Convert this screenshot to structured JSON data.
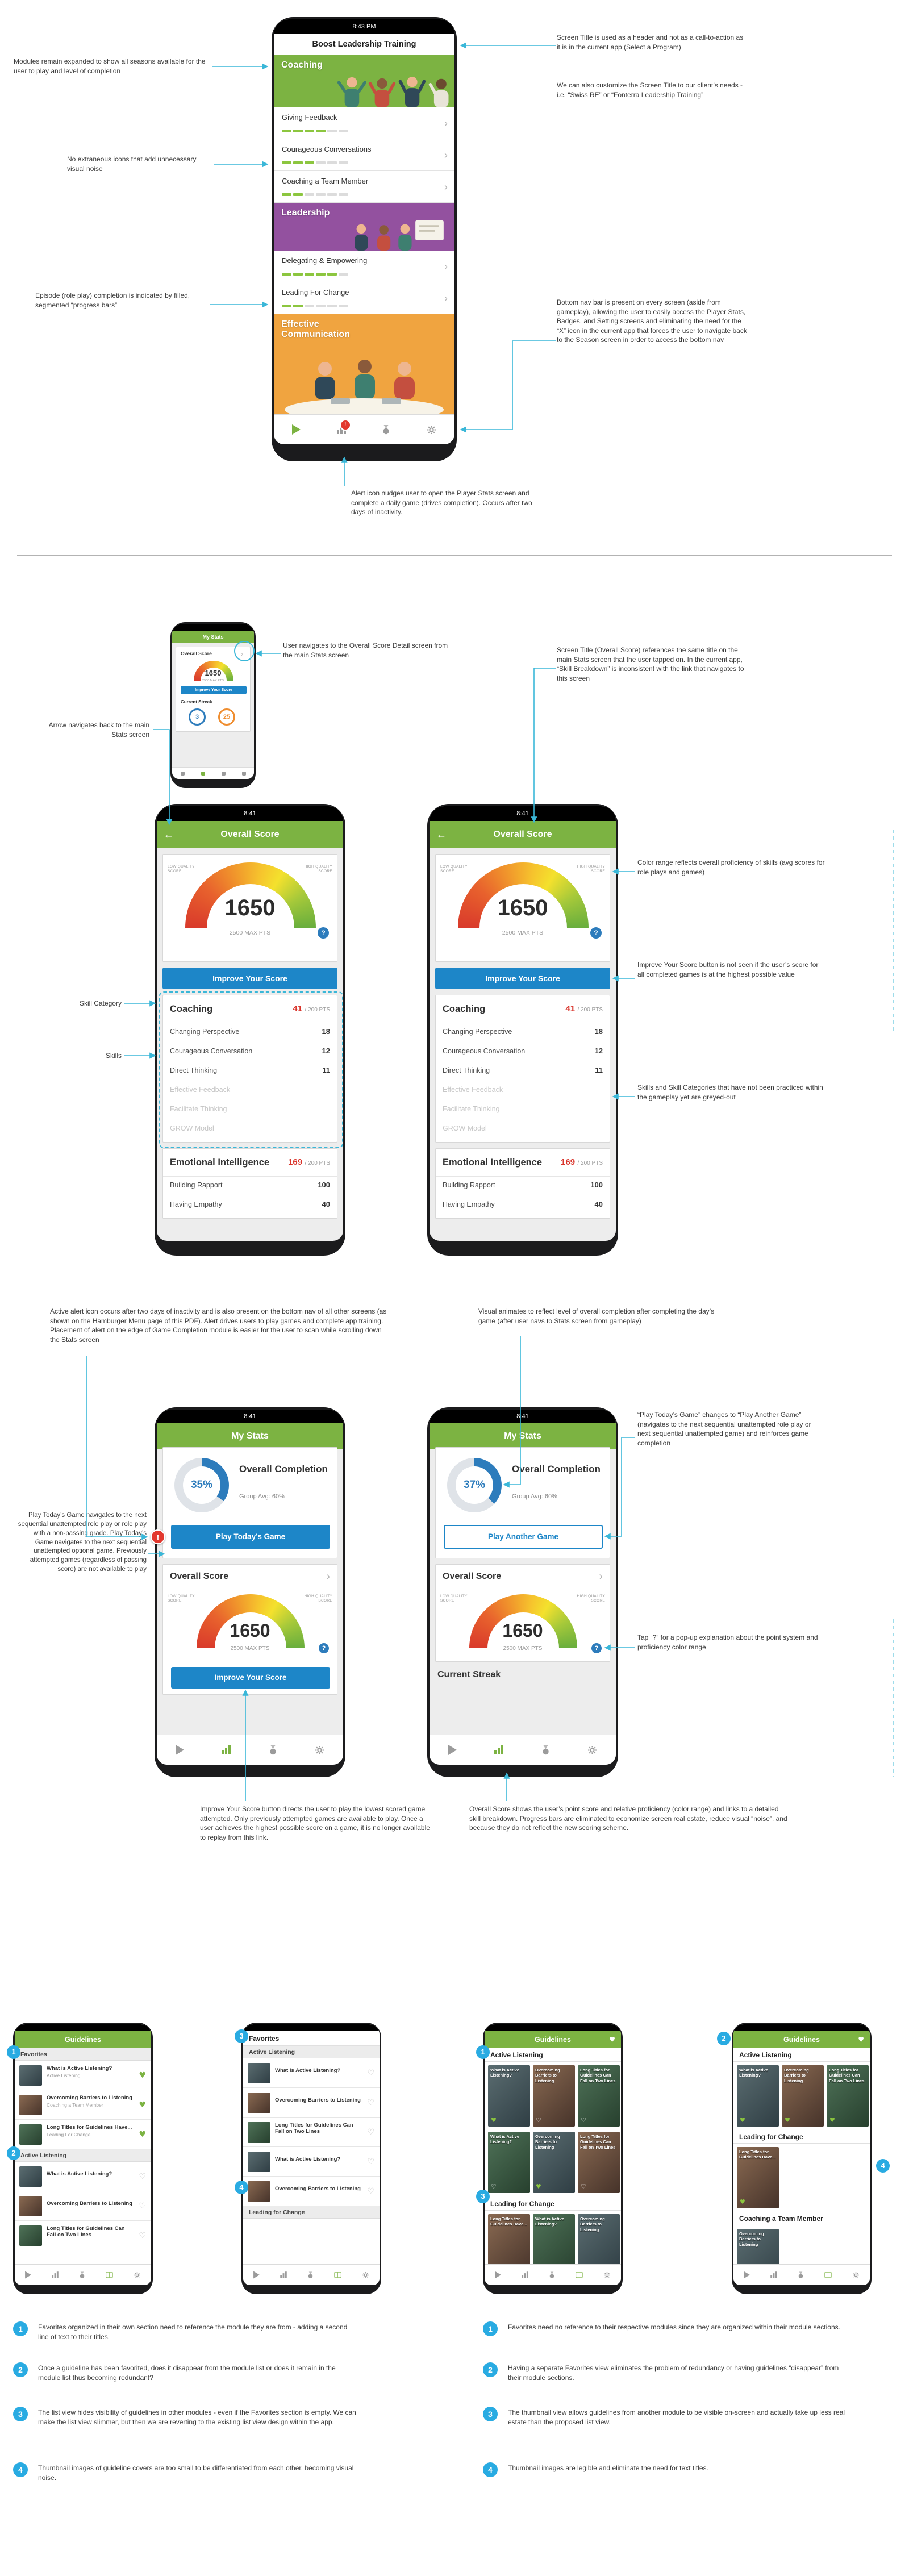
{
  "colors": {
    "app_green": "#7cb342",
    "leadership_purple": "#93519f",
    "communication_orange": "#f0a440",
    "button_blue": "#1d86c8",
    "alert_red": "#e2382e",
    "annotation_cyan": "#3ab7d8",
    "callout_blue": "#29abe2",
    "score_red": "#d9342b"
  },
  "board": {
    "s1": {
      "phone": {
        "time": "8:43 PM",
        "title": "Boost Leadership Training",
        "alert": "!",
        "modules": [
          {
            "kind": "banner",
            "label": "Coaching"
          },
          {
            "kind": "row",
            "label": "Giving Feedback",
            "filled": 4,
            "total": 6
          },
          {
            "kind": "row",
            "label": "Courageous Conversations",
            "filled": 3,
            "total": 6
          },
          {
            "kind": "row",
            "label": "Coaching a Team Member",
            "filled": 2,
            "total": 6
          },
          {
            "kind": "banner",
            "label": "Leadership"
          },
          {
            "kind": "row",
            "label": "Delegating & Empowering",
            "filled": 5,
            "total": 6
          },
          {
            "kind": "row",
            "label": "Leading For Change",
            "filled": 2,
            "total": 6
          },
          {
            "kind": "banner",
            "label": "Effective Communication"
          }
        ]
      },
      "ann": {
        "modules": "Modules remain expanded to show all seasons available for the user to play and level of completion",
        "icons": "No extraneous icons that add unnecessary visual noise",
        "episode": "Episode (role play) completion is indicated by filled, segmented “progress bars”",
        "screen_title": "Screen Title is used as a header and not as a call-to-action as it is in the current app (Select a Program)",
        "customize": "We can also customize the Screen Title to our client’s needs - i.e. “Swiss RE” or “Fonterra Leadership Training”",
        "bottom_nav": "Bottom nav bar is present on every screen (aside from gameplay), allowing the user to easily access the Player Stats, Badges, and Setting screens and eliminating the need for the “X” icon in the current app that forces the user to navigate back to the Season screen in order to access the bottom nav",
        "alert": "Alert icon nudges user to open the Player Stats screen and complete a daily game (drives completion). Occurs after two days of inactivity."
      }
    },
    "s2": {
      "mini": {
        "title": "My Stats",
        "card_title": "Overall Score",
        "score": "1650",
        "max": "2500 MAX PTS",
        "improve": "Improve Your Score",
        "streak": "Current Streak",
        "streak_a": "3",
        "streak_b": "25"
      },
      "screen": {
        "time": "8:41",
        "title": "Overall Score",
        "low": "LOW QUALITY SCORE",
        "high": "HIGH QUALITY SCORE",
        "score": "1650",
        "max": "2500 MAX PTS",
        "help": "?",
        "improve": "Improve Your Score",
        "cat1": {
          "name": "Coaching",
          "pts": "41",
          "ptsmax": "/ 200 PTS"
        },
        "cat1_skills": [
          {
            "name": "Changing Perspective",
            "value": "18",
            "grey": false
          },
          {
            "name": "Courageous Conversation",
            "value": "12",
            "grey": false
          },
          {
            "name": "Direct Thinking",
            "value": "11",
            "grey": false
          },
          {
            "name": "Effective Feedback",
            "value": "",
            "grey": true
          },
          {
            "name": "Facilitate Thinking",
            "value": "",
            "grey": true
          },
          {
            "name": "GROW Model",
            "value": "",
            "grey": true
          }
        ],
        "cat2": {
          "name": "Emotional Intelligence",
          "pts": "169",
          "ptsmax": "/ 200 PTS"
        },
        "cat2_skills": [
          {
            "name": "Building Rapport",
            "value": "100",
            "grey": false
          },
          {
            "name": "Having Empathy",
            "value": "40",
            "grey": false
          }
        ]
      },
      "ann": {
        "navigate": "User navigates to the Overall Score Detail screen from the main Stats screen",
        "back": "Arrow navigates back to the main Stats screen",
        "screen_title": "Screen Title (Overall Score) references the same title on the main Stats screen that the user tapped on. In the current app, “Skill Breakdown” is inconsistent with the link that navigates to this screen",
        "skill_category": "Skill Category",
        "skills": "Skills",
        "color_range": "Color range reflects overall proficiency of skills (avg scores for role plays and games)",
        "improve": "Improve Your Score button is not seen if the user’s score for all completed games is at the highest possible value",
        "greyed": "Skills and Skill Categories that have not been practiced within the gameplay yet are greyed-out"
      }
    },
    "s3": {
      "a": {
        "time": "8:41",
        "title": "My Stats",
        "pct": 35,
        "pct_label": "35%",
        "completion": "Overall Completion",
        "avg": "Group Avg: 60%",
        "play": "Play Today’s Game",
        "card_title": "Overall Score",
        "score": "1650",
        "max": "2500 MAX PTS",
        "help": "?",
        "improve": "Improve Your Score",
        "alert": "!",
        "low": "LOW QUALITY SCORE",
        "high": "HIGH QUALITY SCORE"
      },
      "b": {
        "time": "8:41",
        "title": "My Stats",
        "pct": 37,
        "pct_label": "37%",
        "completion": "Overall Completion",
        "avg": "Group Avg: 60%",
        "play": "Play Another Game",
        "card_title": "Overall Score",
        "score": "1650",
        "max": "2500 MAX PTS",
        "help": "?",
        "streak": "Current Streak",
        "low": "LOW QUALITY SCORE",
        "high": "HIGH QUALITY SCORE"
      },
      "ann": {
        "alert": "Active alert icon occurs after two days of inactivity and is also present on the bottom nav of all other screens (as shown on the Hamburger Menu page of this PDF). Alert drives users to play games and complete app training. Placement of alert on the edge of Game Completion module is easier for the user to scan while scrolling down the Stats screen",
        "animate": "Visual animates to reflect level of overall completion after completing the day’s game (after user navs to Stats screen from gameplay)",
        "play_nav": "Play Today’s Game navigates to the next sequential unattempted role play or role play with a non-passing grade. Play Today’s Game navigates to the next sequential unattempted optional game. Previously attempted games (regardless of passing score) are not available to play",
        "another": "“Play Today’s Game” changes to “Play Another Game” (navigates to the next sequential unattempted role play or next sequential unattempted game) and reinforces game completion",
        "tap": "Tap “?” for a pop-up explanation about the point system and proficiency color range",
        "improve": "Improve Your Score button directs the user to play the lowest scored game attempted. Only previously attempted games are available to play. Once a user achieves the highest possible score on a game, it is no longer available to replay from this link.",
        "score": "Overall Score shows the user’s point score and relative proficiency (color range) and links to a detailed skill breakdown. Progress bars are eliminated to economize screen real estate, reduce visual “noise”, and because they do not reflect the new scoring scheme."
      }
    },
    "s4": {
      "title": "Guidelines",
      "p1": {
        "sec1": "Favorites",
        "fav_items": [
          {
            "title": "What is Active Listening?",
            "sub": "Active Listening",
            "fav": true
          },
          {
            "title": "Overcoming Barriers to Listening",
            "sub": "Coaching a Team Member",
            "fav": true
          },
          {
            "title": "Long Titles for Guidelines Have...",
            "sub": "Leading For Change",
            "fav": true
          }
        ],
        "sec2": "Active Listening",
        "items": [
          {
            "title": "What is Active Listening?",
            "fav": false
          },
          {
            "title": "Overcoming Barriers to Listening",
            "fav": false
          },
          {
            "title": "Long Titles for Guidelines Can Fall on Two Lines",
            "fav": false
          }
        ]
      },
      "p2": {
        "sec1": "Favorites",
        "sec2": "Active Listening",
        "items": [
          {
            "title": "What is Active Listening?",
            "fav": false
          },
          {
            "title": "Overcoming Barriers to Listening",
            "fav": false
          },
          {
            "title": "Long Titles for Guidelines Can Fall on Two Lines",
            "fav": false
          },
          {
            "title": "What is Active Listening?",
            "fav": false
          },
          {
            "title": "Overcoming Barriers to Listening",
            "fav": false
          }
        ],
        "sec3": "Leading for Change"
      },
      "p3": {
        "sec1": "Active Listening",
        "row1": [
          {
            "title": "What is Active Listening?",
            "fav": true
          },
          {
            "title": "Overcoming Barriers to Listening",
            "fav": false
          },
          {
            "title": "Long Titles for Guidelines Can Fall on Two Lines",
            "fav": false
          }
        ],
        "row2": [
          {
            "title": "What is Active Listening?",
            "fav": false
          },
          {
            "title": "Overcoming Barriers to Listening",
            "fav": true
          },
          {
            "title": "Long Titles for Guidelines Can Fall on Two Lines",
            "fav": false
          }
        ],
        "sec2": "Leading for Change",
        "row3": [
          {
            "title": "Long Titles for Guidelines Have...",
            "fav": true
          },
          {
            "title": "What is Active Listening?",
            "fav": false
          },
          {
            "title": "Overcoming Barriers to Listening",
            "fav": false
          }
        ]
      },
      "p4": {
        "sec1": "Active Listening",
        "row1": [
          {
            "title": "What is Active Listening?",
            "fav": true
          },
          {
            "title": "Overcoming Barriers to Listening",
            "fav": true
          },
          {
            "title": "Long Titles for Guidelines Can Fall on Two Lines",
            "fav": true
          }
        ],
        "sec2": "Leading for Change",
        "row2": [
          {
            "title": "Long Titles for Guidelines Have...",
            "fav": true
          }
        ],
        "sec3": "Coaching a Team Member",
        "row3": [
          {
            "title": "Overcoming Barriers to Listening",
            "fav": true
          }
        ]
      },
      "callouts": {
        "c1": "1",
        "c2": "2",
        "c3": "3",
        "c4": "4"
      },
      "notes_left": [
        {
          "n": "1",
          "text": "Favorites organized in their own section need to reference the module they are from - adding a second line of text to their titles."
        },
        {
          "n": "2",
          "text": "Once a guideline has been favorited, does it disappear from the module list or does it remain in the module list thus becoming redundant?"
        },
        {
          "n": "3",
          "text": "The list view hides visibility of guidelines in other modules - even if the Favorites section is empty. We can make the list view slimmer, but then we are reverting to the existing list view design within the app."
        },
        {
          "n": "4",
          "text": "Thumbnail images of guideline covers are too small to be differentiated from each other, becoming visual noise."
        }
      ],
      "notes_right": [
        {
          "n": "1",
          "text": "Favorites need no reference to their respective modules since they are organized within their module sections."
        },
        {
          "n": "2",
          "text": "Having a separate Favorites view eliminates the problem of redundancy or having guidelines “disappear” from their module sections."
        },
        {
          "n": "3",
          "text": "The thumbnail view allows guidelines from another module to be visible on-screen and actually take up less real estate than the proposed list view."
        },
        {
          "n": "4",
          "text": "Thumbnail images are legible and eliminate the need for text titles."
        }
      ]
    }
  }
}
